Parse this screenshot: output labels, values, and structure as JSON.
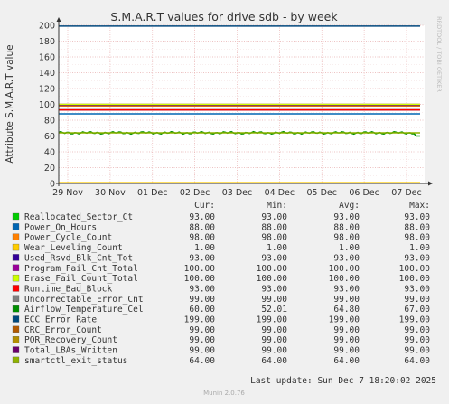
{
  "chart_data": {
    "type": "line",
    "title": "S.M.A.R.T values for drive sdb - by week",
    "ylabel": "Attribute S.M.A.R.T value",
    "side_label": "RRDTOOL / TOBI OETIKER",
    "ylim": [
      0,
      200
    ],
    "yticks": [
      "0",
      "20",
      "40",
      "60",
      "80",
      "100",
      "120",
      "140",
      "160",
      "180",
      "200"
    ],
    "x_ticks": [
      "29 Nov",
      "30 Nov",
      "01 Dec",
      "02 Dec",
      "03 Dec",
      "04 Dec",
      "05 Dec",
      "06 Dec",
      "07 Dec"
    ],
    "columns": [
      "Cur:",
      "Min:",
      "Avg:",
      "Max:"
    ],
    "series": [
      {
        "name": "Reallocated_Sector_Ct",
        "color": "#00cc00",
        "cur": "93.00",
        "min": "93.00",
        "avg": "93.00",
        "max": "93.00",
        "value": 93
      },
      {
        "name": "Power_On_Hours",
        "color": "#0066b3",
        "cur": "88.00",
        "min": "88.00",
        "avg": "88.00",
        "max": "88.00",
        "value": 88
      },
      {
        "name": "Power_Cycle_Count",
        "color": "#ff8000",
        "cur": "98.00",
        "min": "98.00",
        "avg": "98.00",
        "max": "98.00",
        "value": 98
      },
      {
        "name": "Wear_Leveling_Count",
        "color": "#ffcc00",
        "cur": "1.00",
        "min": "1.00",
        "avg": "1.00",
        "max": "1.00",
        "value": 1
      },
      {
        "name": "Used_Rsvd_Blk_Cnt_Tot",
        "color": "#330099",
        "cur": "93.00",
        "min": "93.00",
        "avg": "93.00",
        "max": "93.00",
        "value": 93
      },
      {
        "name": "Program_Fail_Cnt_Total",
        "color": "#990099",
        "cur": "100.00",
        "min": "100.00",
        "avg": "100.00",
        "max": "100.00",
        "value": 100
      },
      {
        "name": "Erase_Fail_Count_Total",
        "color": "#ccff00",
        "cur": "100.00",
        "min": "100.00",
        "avg": "100.00",
        "max": "100.00",
        "value": 100
      },
      {
        "name": "Runtime_Bad_Block",
        "color": "#ff0000",
        "cur": "93.00",
        "min": "93.00",
        "avg": "93.00",
        "max": "93.00",
        "value": 93
      },
      {
        "name": "Uncorrectable_Error_Cnt",
        "color": "#808080",
        "cur": "99.00",
        "min": "99.00",
        "avg": "99.00",
        "max": "99.00",
        "value": 99
      },
      {
        "name": "Airflow_Temperature_Cel",
        "color": "#008f00",
        "cur": "60.00",
        "min": "52.01",
        "avg": "64.80",
        "max": "67.00",
        "value": 64
      },
      {
        "name": "ECC_Error_Rate",
        "color": "#00487d",
        "cur": "199.00",
        "min": "199.00",
        "avg": "199.00",
        "max": "199.00",
        "value": 199
      },
      {
        "name": "CRC_Error_Count",
        "color": "#b35a00",
        "cur": "99.00",
        "min": "99.00",
        "avg": "99.00",
        "max": "99.00",
        "value": 99
      },
      {
        "name": "POR_Recovery_Count",
        "color": "#b38f00",
        "cur": "99.00",
        "min": "99.00",
        "avg": "99.00",
        "max": "99.00",
        "value": 99
      },
      {
        "name": "Total_LBAs_Written",
        "color": "#6b006b",
        "cur": "99.00",
        "min": "99.00",
        "avg": "99.00",
        "max": "99.00",
        "value": 99
      },
      {
        "name": "smartctl_exit_status",
        "color": "#8fb300",
        "cur": "64.00",
        "min": "64.00",
        "avg": "64.00",
        "max": "64.00",
        "value": 64
      }
    ],
    "last_update": "Last update: Sun Dec  7 18:20:02 2025",
    "footer": "Munin 2.0.76"
  }
}
